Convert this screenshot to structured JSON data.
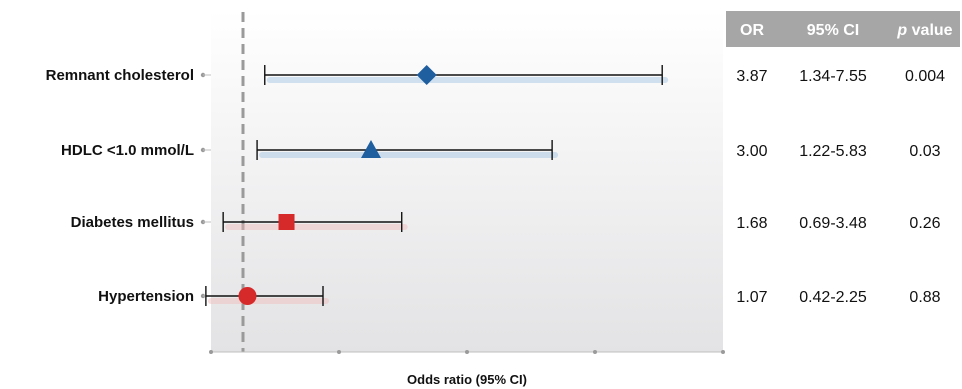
{
  "chart_data": {
    "type": "forest",
    "xlabel": "Odds ratio (95% CI)",
    "reference_line": 1.0,
    "xlim": [
      0.5,
      8.5
    ],
    "x_ticks_count": 5,
    "grid": false,
    "columns": [
      "OR",
      "95% CI",
      "p value"
    ],
    "rows": [
      {
        "label": "Remnant cholesterol",
        "or": 3.87,
        "ci_low": 1.34,
        "ci_high": 7.55,
        "or_text": "3.87",
        "ci_text": "1.34-7.55",
        "p_text": "0.004",
        "marker": "diamond",
        "color": "#1f5fa0",
        "shadow": "#9ec0e0"
      },
      {
        "label": "HDLC <1.0 mmol/L",
        "or": 3.0,
        "ci_low": 1.22,
        "ci_high": 5.83,
        "or_text": "3.00",
        "ci_text": "1.22-5.83",
        "p_text": "0.03",
        "marker": "triangle",
        "color": "#1f5fa0",
        "shadow": "#9ec0e0"
      },
      {
        "label": "Diabetes mellitus",
        "or": 1.68,
        "ci_low": 0.69,
        "ci_high": 3.48,
        "or_text": "1.68",
        "ci_text": "0.69-3.48",
        "p_text": "0.26",
        "marker": "square",
        "color": "#d62a2a",
        "shadow": "#f0b8b8"
      },
      {
        "label": "Hypertension",
        "or": 1.07,
        "ci_low": 0.42,
        "ci_high": 2.25,
        "or_text": "1.07",
        "ci_text": "0.42-2.25",
        "p_text": "0.88",
        "marker": "circle",
        "color": "#d62a2a",
        "shadow": "#f0b8b8"
      }
    ]
  },
  "colors": {
    "header_bg": "#a6a6a6",
    "header_text": "#ffffff",
    "reference_line": "#9a9a9a",
    "panel_top": "#ffffff",
    "panel_bottom": "#e4e4e6"
  }
}
